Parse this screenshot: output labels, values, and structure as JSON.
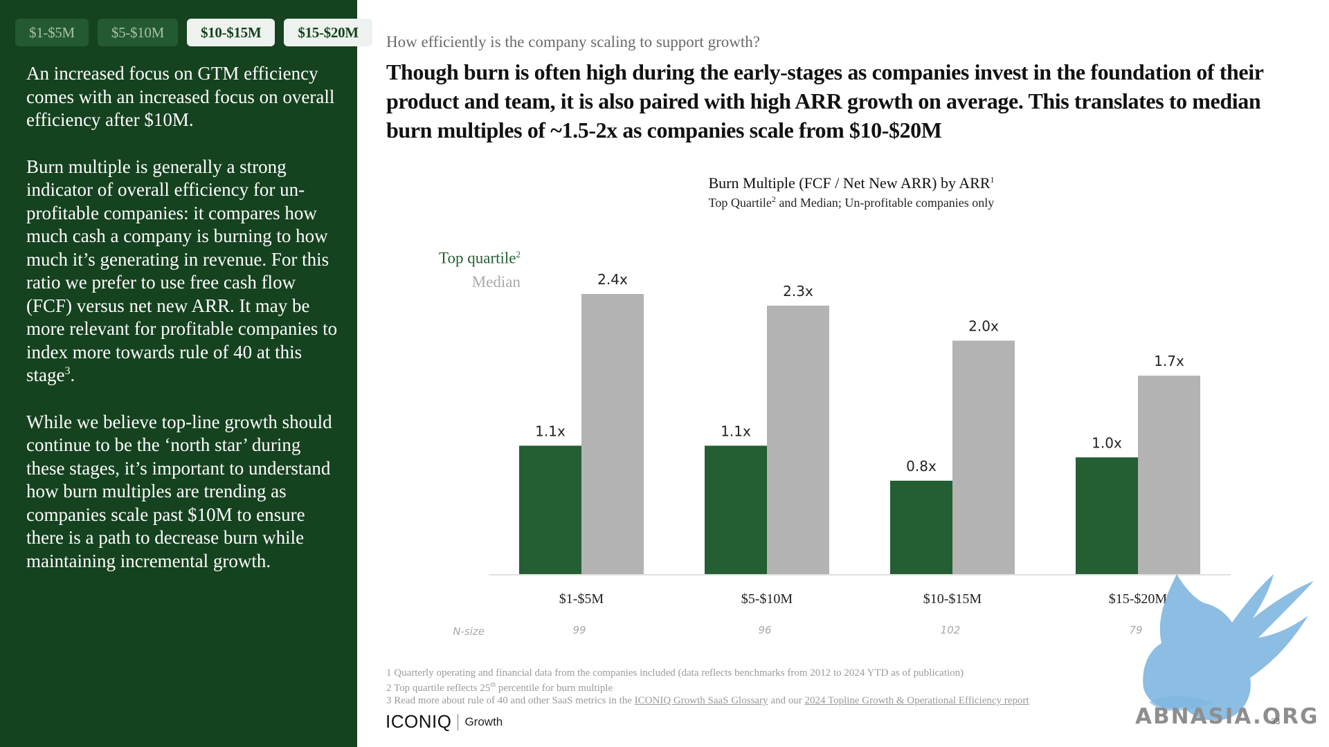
{
  "tabs": [
    {
      "label": "$1-$5M",
      "active": false
    },
    {
      "label": "$5-$10M",
      "active": false
    },
    {
      "label": "$10-$15M",
      "active": true
    },
    {
      "label": "$15-$20M",
      "active": true
    }
  ],
  "left": {
    "p1": "An increased focus on GTM efficiency comes with an increased focus on overall efficiency after $10M.",
    "p2": "Burn multiple is generally a strong indicator of overall efficiency for un-profitable companies: it compares how much cash a company is burning to how much it’s generating in revenue. For this ratio we prefer to use free cash flow (FCF) versus net new ARR. It may be more relevant for profitable companies to index more towards rule of 40 at this stage",
    "p2_sup": "3",
    "p2_end": ".",
    "p3": "While we believe top-line growth should continue to be the ‘north star’ during these stages, it’s important to understand how burn multiples are trending as companies scale past $10M to ensure there is a path to decrease burn while maintaining incremental growth."
  },
  "kicker": "How efficiently is the company scaling to support growth?",
  "headline": "Though burn is often high during the early-stages as companies invest in the foundation of their product and team, it is also paired with high ARR growth on average. This translates to median burn multiples of ~1.5-2x as companies scale from $10-$20M",
  "chart_data": {
    "type": "bar",
    "title": "Burn Multiple (FCF / Net New ARR) by ARR",
    "title_sup": "1",
    "subtitle_a": "Top Quartile",
    "subtitle_sup": "2",
    "subtitle_b": " and Median; Un-profitable companies only",
    "categories": [
      "$1-$5M",
      "$5-$10M",
      "$10-$15M",
      "$15-$20M"
    ],
    "series": [
      {
        "name": "Top quartile",
        "name_sup": "2",
        "color": "#245e33",
        "values": [
          1.1,
          1.1,
          0.8,
          1.0
        ],
        "labels": [
          "1.1x",
          "1.1x",
          "0.8x",
          "1.0x"
        ]
      },
      {
        "name": "Median",
        "color": "#b3b3b3",
        "values": [
          2.4,
          2.3,
          2.0,
          1.7
        ],
        "labels": [
          "2.4x",
          "2.3x",
          "2.0x",
          "1.7x"
        ]
      }
    ],
    "ylim": [
      0,
      2.4
    ],
    "nsize_label": "N-size",
    "nsize": [
      "99",
      "96",
      "102",
      "79"
    ],
    "legend_placement": "top-left",
    "grid": false
  },
  "footnotes": {
    "f1": "1 Quarterly operating and financial data from the companies included (data reflects benchmarks from 2012 to 2024 YTD as of publication)",
    "f2a": "2 Top quartile reflects 25",
    "f2sup": "th",
    "f2b": " percentile for burn multiple",
    "f3a": "3 Read more about rule of 40 and other SaaS metrics in the ",
    "f3link1": "ICONIQ Growth SaaS Glossary",
    "f3b": " and our ",
    "f3link2": "2024 Topline Growth & Operational Efficiency report"
  },
  "footer": {
    "logo": "ICONIQ",
    "logo_sub": "Growth",
    "page": "33"
  },
  "watermark": {
    "text": "ABNASIA.ORG",
    "color": "#7fb6e0"
  }
}
